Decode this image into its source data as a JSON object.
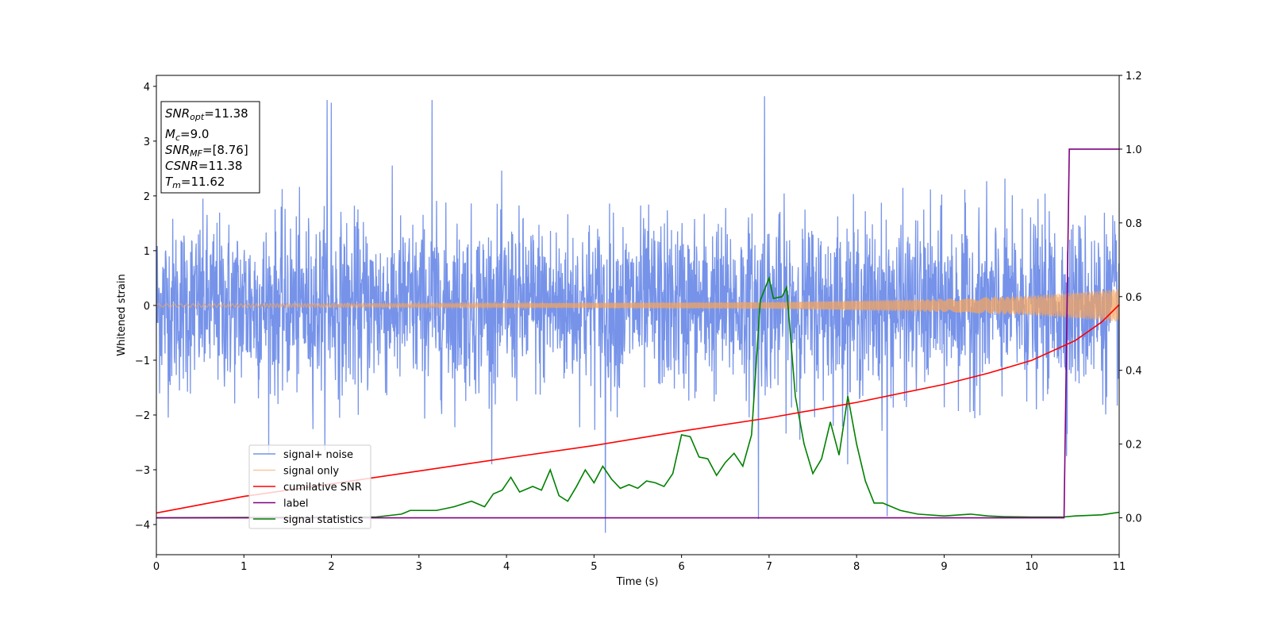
{
  "chart_data": {
    "type": "line",
    "xlabel": "Time (s)",
    "ylabel": "Whitened strain",
    "xlim": [
      0,
      11
    ],
    "ylim": [
      -4.55,
      4.2
    ],
    "y2lim": [
      -0.1,
      1.2
    ],
    "x_ticks": [
      0,
      1,
      2,
      3,
      4,
      5,
      6,
      7,
      8,
      9,
      10,
      11
    ],
    "y_ticks": [
      4,
      3,
      2,
      1,
      0,
      -1,
      -2,
      -3,
      -4
    ],
    "y_tick_labels": [
      "4",
      "3",
      "2",
      "1",
      "0",
      "−1",
      "−2",
      "−3",
      "−4"
    ],
    "y2_ticks": [
      1.2,
      1.0,
      0.8,
      0.6,
      0.4,
      0.2,
      0.0
    ],
    "y2_tick_labels": [
      "1.2",
      "1.0",
      "0.8",
      "0.6",
      "0.4",
      "0.2",
      "0.0"
    ],
    "grid": false,
    "legend_position": "lower-left",
    "annotation": {
      "snr_opt": "=11.38",
      "mc": "=9.0",
      "snr_mf": "=[8.76]",
      "csnr": "=11.38",
      "tm": "=11.62"
    },
    "series": [
      {
        "name": "signal+ noise",
        "color": "#4169e1",
        "axis": "left",
        "description": "whitened noise, roughly ±1.6 envelope with spikes up to 3.8 and down to -4.15",
        "notable_peaks": [
          [
            1.95,
            3.75
          ],
          [
            2.0,
            3.7
          ],
          [
            3.15,
            3.75
          ],
          [
            6.95,
            3.82
          ],
          [
            5.13,
            -4.15
          ],
          [
            10.4,
            -2.75
          ],
          [
            6.88,
            -3.9
          ],
          [
            8.35,
            -3.85
          ]
        ]
      },
      {
        "name": "signal only",
        "color": "#f4a460",
        "axis": "left",
        "description": "chirp oscillation, amplitude growing from ~0.03 at t=0 to ~0.3 at t=11",
        "amplitude": [
          [
            0,
            0.03
          ],
          [
            4,
            0.04
          ],
          [
            7,
            0.06
          ],
          [
            9,
            0.12
          ],
          [
            10,
            0.18
          ],
          [
            11,
            0.3
          ]
        ]
      },
      {
        "name": "cumilative SNR",
        "color": "#ff0000",
        "axis": "right",
        "x": [
          0,
          1,
          2,
          3,
          4,
          5,
          6,
          7,
          8,
          9,
          9.5,
          10,
          10.5,
          10.8,
          11
        ],
        "y": [
          0.013,
          0.058,
          0.092,
          0.127,
          0.162,
          0.196,
          0.235,
          0.271,
          0.313,
          0.362,
          0.392,
          0.427,
          0.481,
          0.531,
          0.578
        ]
      },
      {
        "name": "label",
        "color": "#800080",
        "axis": "right",
        "x": [
          0,
          10.37,
          10.43,
          11
        ],
        "y": [
          0.0,
          0.0,
          1.0,
          1.0
        ]
      },
      {
        "name": "signal statistics",
        "color": "#008000",
        "axis": "right",
        "x": [
          0,
          2.5,
          2.8,
          2.9,
          3.2,
          3.4,
          3.6,
          3.75,
          3.85,
          3.95,
          4.05,
          4.15,
          4.3,
          4.4,
          4.5,
          4.6,
          4.7,
          4.8,
          4.9,
          5.0,
          5.1,
          5.2,
          5.3,
          5.4,
          5.5,
          5.6,
          5.7,
          5.8,
          5.9,
          6.0,
          6.1,
          6.2,
          6.3,
          6.4,
          6.5,
          6.6,
          6.7,
          6.8,
          6.9,
          7.0,
          7.05,
          7.15,
          7.2,
          7.3,
          7.4,
          7.5,
          7.6,
          7.7,
          7.8,
          7.9,
          8.0,
          8.1,
          8.2,
          8.3,
          8.5,
          8.7,
          9.0,
          9.3,
          9.5,
          9.7,
          10.0,
          10.35,
          10.5,
          10.8,
          11.0
        ],
        "y": [
          0.0,
          0.002,
          0.01,
          0.02,
          0.02,
          0.03,
          0.045,
          0.03,
          0.065,
          0.075,
          0.11,
          0.07,
          0.085,
          0.075,
          0.13,
          0.06,
          0.045,
          0.085,
          0.13,
          0.095,
          0.14,
          0.105,
          0.08,
          0.09,
          0.08,
          0.1,
          0.095,
          0.085,
          0.12,
          0.225,
          0.22,
          0.165,
          0.16,
          0.115,
          0.15,
          0.175,
          0.14,
          0.225,
          0.59,
          0.65,
          0.595,
          0.6,
          0.625,
          0.33,
          0.2,
          0.12,
          0.16,
          0.26,
          0.17,
          0.33,
          0.2,
          0.1,
          0.04,
          0.04,
          0.02,
          0.01,
          0.005,
          0.01,
          0.005,
          0.003,
          0.002,
          0.002,
          0.005,
          0.008,
          0.015
        ]
      }
    ]
  }
}
